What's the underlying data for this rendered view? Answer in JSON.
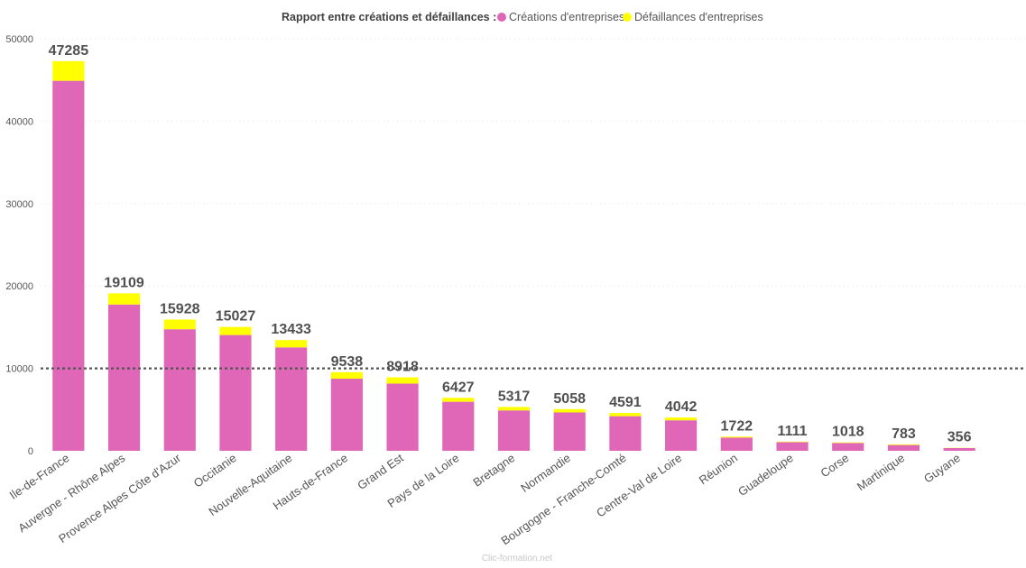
{
  "chart_data": {
    "type": "bar",
    "stacked": true,
    "legend_title": "Rapport entre créations et défaillances :",
    "legend_placement": "top-center",
    "categories": [
      "Ile-de-France",
      "Auvergne - Rhône Alpes",
      "Provence Alpes Côte d'Azur",
      "Occitanie",
      "Nouvelle-Aquitaine",
      "Hauts-de-France",
      "Grand Est",
      "Pays de la Loire",
      "Bretagne",
      "Normandie",
      "Bourgogne - Franche-Comté",
      "Centre-Val de Loire",
      "Réunion",
      "Guadeloupe",
      "Corse",
      "Martinique",
      "Guyane"
    ],
    "series": [
      {
        "name": "Créations d'entreprises",
        "color": "#e066b8",
        "values": [
          44900,
          17750,
          14750,
          14050,
          12550,
          8750,
          8150,
          5950,
          4900,
          4650,
          4200,
          3700,
          1600,
          1050,
          950,
          700,
          330
        ]
      },
      {
        "name": "Défaillances d'entreprises",
        "color": "#ffff00",
        "values": [
          2385,
          1359,
          1178,
          977,
          883,
          788,
          768,
          477,
          417,
          408,
          391,
          342,
          122,
          61,
          68,
          83,
          26
        ]
      }
    ],
    "totals": [
      "47285",
      "19109",
      "15928",
      "15027",
      "13433",
      "9538",
      "8918",
      "6427",
      "5317",
      "5058",
      "4591",
      "4042",
      "1722",
      "1111",
      "1018",
      "783",
      "356"
    ],
    "yticks": [
      "0",
      "10000",
      "20000",
      "30000",
      "40000",
      "50000"
    ],
    "ylim": [
      0,
      50000
    ],
    "reference_line": 10000,
    "grid": true
  },
  "watermark": "Clic-formation.net"
}
